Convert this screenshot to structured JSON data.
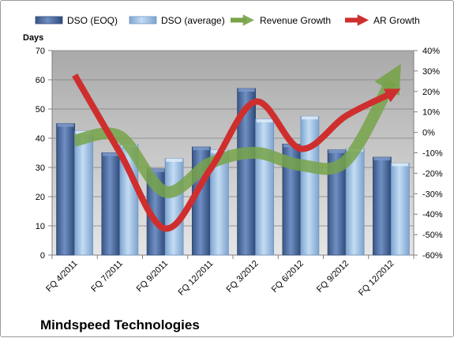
{
  "chart_data": {
    "type": "bar",
    "title": "Mindspeed Technologies",
    "ylabel": "Days",
    "categories": [
      "FQ 4/2011",
      "FQ 7/2011",
      "FQ 9/2011",
      "FQ 12/2011",
      "FQ 3/2012",
      "FQ 6/2012",
      "FQ 9/2012",
      "FQ 12/2012"
    ],
    "ylim": [
      0,
      70
    ],
    "yticks": [
      "0",
      "10",
      "20",
      "30",
      "40",
      "50",
      "60",
      "70"
    ],
    "y2lim": [
      -60,
      40
    ],
    "y2ticks": [
      "-60%",
      "-50%",
      "-40%",
      "-30%",
      "-20%",
      "-10%",
      "0%",
      "10%",
      "20%",
      "30%",
      "40%"
    ],
    "series": [
      {
        "name": "DSO (EOQ)",
        "kind": "bar",
        "axis": "left",
        "color": "#4f6fa3",
        "values": [
          45,
          35,
          29.5,
          37,
          57,
          38,
          36,
          33.5
        ]
      },
      {
        "name": "DSO (average)",
        "kind": "bar",
        "axis": "left",
        "color": "#9cbfe3",
        "values": [
          42.5,
          38,
          33,
          36,
          46.5,
          47.5,
          36.5,
          31.5
        ]
      },
      {
        "name": "Revenue Growth",
        "kind": "line",
        "axis": "right",
        "color": "#77a34a",
        "values": [
          -4,
          -2,
          -29,
          -15,
          -10,
          -16,
          -14,
          25
        ]
      },
      {
        "name": "AR Growth",
        "kind": "line",
        "axis": "right",
        "color": "#cf2e2e",
        "values": [
          28,
          -10,
          -47,
          -18,
          15,
          -8,
          8,
          19
        ]
      }
    ],
    "grid": true,
    "legend_position": "top"
  }
}
